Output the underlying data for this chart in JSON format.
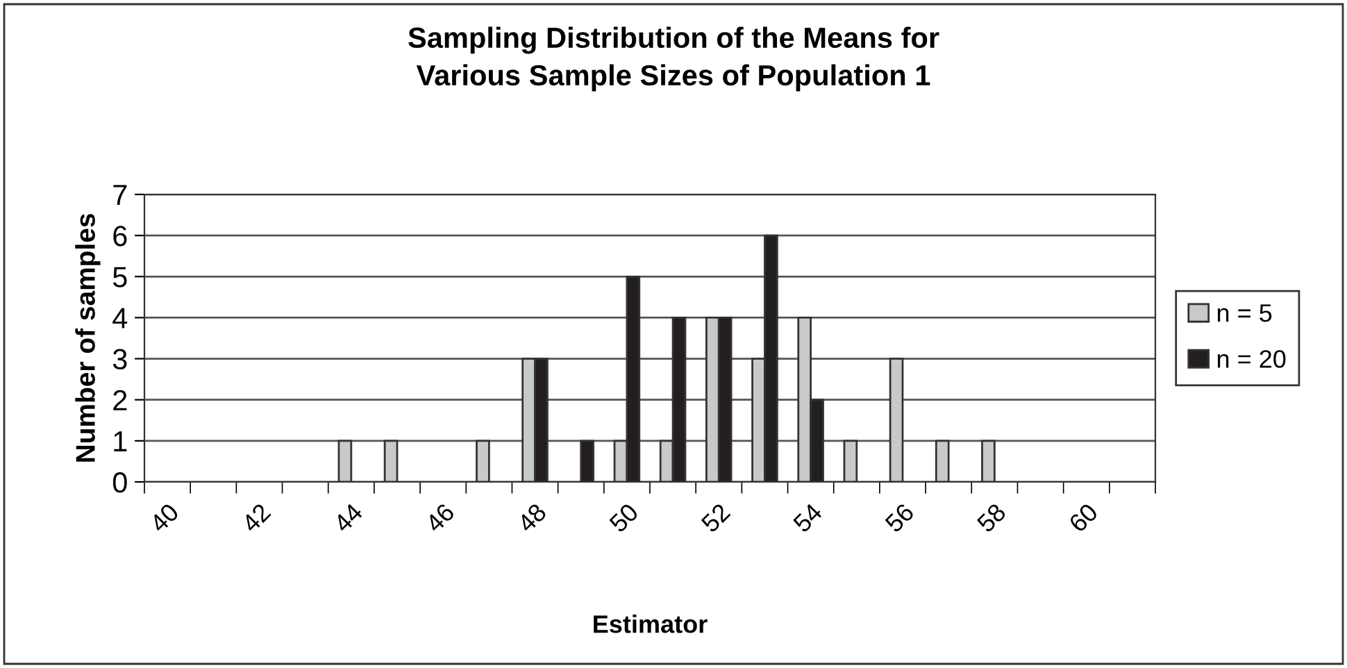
{
  "chart_data": {
    "type": "bar",
    "title": "Sampling Distribution of the Means for\nVarious Sample Sizes of Population 1",
    "xlabel": "Estimator",
    "ylabel": "Number of samples",
    "categories": [
      "40",
      null,
      "42",
      null,
      "44",
      null,
      "46",
      null,
      "48",
      null,
      "50",
      null,
      "52",
      null,
      "54",
      null,
      "56",
      null,
      "58",
      null,
      "60",
      null
    ],
    "series": [
      {
        "name": "n = 5",
        "color": "#c8c9cb",
        "values": [
          0,
          0,
          0,
          0,
          1,
          1,
          0,
          1,
          3,
          0,
          1,
          1,
          4,
          3,
          4,
          1,
          3,
          1,
          1,
          0,
          0,
          0
        ]
      },
      {
        "name": "n = 20",
        "color": "#231f20",
        "values": [
          0,
          0,
          0,
          0,
          0,
          0,
          0,
          0,
          3,
          1,
          5,
          4,
          4,
          6,
          2,
          0,
          0,
          0,
          0,
          0,
          0,
          0
        ]
      }
    ],
    "ylim": [
      0,
      7
    ],
    "yticks": [
      0,
      1,
      2,
      3,
      4,
      5,
      6,
      7
    ],
    "grid": "y",
    "legend": "right"
  }
}
